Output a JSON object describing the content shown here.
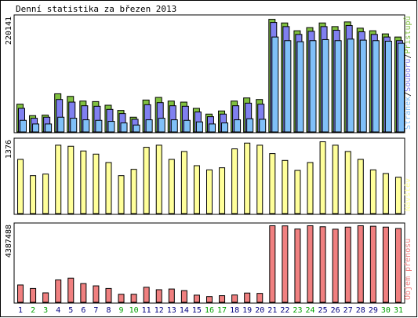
{
  "title": "Denní statistika za březen 2013",
  "colors": {
    "hits": "#80c040",
    "files": "#8080f0",
    "pages": "#80c0f8",
    "visits": "#ffff9a",
    "kbytes": "#f08080",
    "weekday_label": "#000080",
    "weekend_label": "#00a000",
    "border": "#000000"
  },
  "chart_data": [
    {
      "type": "bar",
      "title": "Denní statistika za březen 2013",
      "categories": [
        "1",
        "2",
        "3",
        "4",
        "5",
        "6",
        "7",
        "8",
        "9",
        "10",
        "11",
        "12",
        "13",
        "14",
        "15",
        "16",
        "17",
        "18",
        "19",
        "20",
        "21",
        "22",
        "23",
        "24",
        "25",
        "26",
        "27",
        "28",
        "29",
        "30",
        "31"
      ],
      "weekend_days": [
        "2",
        "3",
        "9",
        "10",
        "16",
        "17",
        "23",
        "24",
        "30",
        "31"
      ],
      "ymax_label": "220141",
      "ylim": [
        0,
        220141
      ],
      "legend": [
        "Stránek",
        "/",
        "Souborů",
        "/",
        "Přístupů"
      ],
      "legend_placement": "right",
      "series": [
        {
          "name": "Přístupů",
          "values": [
            54000,
            32000,
            33000,
            74000,
            69000,
            60000,
            59000,
            52000,
            42000,
            29000,
            62000,
            67000,
            60000,
            58000,
            46000,
            35000,
            41000,
            60000,
            66000,
            63000,
            217000,
            210000,
            195000,
            201000,
            210000,
            203000,
            212000,
            200000,
            195000,
            189000,
            183000
          ]
        },
        {
          "name": "Souborů",
          "values": [
            46000,
            27000,
            29000,
            63000,
            58000,
            51000,
            50000,
            44000,
            36000,
            25000,
            53000,
            57000,
            51000,
            50000,
            39000,
            30000,
            35000,
            51000,
            56000,
            54000,
            211000,
            203000,
            188000,
            194000,
            203000,
            196000,
            205000,
            193000,
            188000,
            183000,
            176000
          ]
        },
        {
          "name": "Stránek",
          "values": [
            23000,
            16000,
            16000,
            29000,
            27000,
            24000,
            23000,
            21000,
            18000,
            14000,
            24000,
            27000,
            24000,
            23000,
            20000,
            16000,
            18000,
            24000,
            26000,
            25000,
            183000,
            176000,
            174000,
            176000,
            178000,
            176000,
            179000,
            177000,
            176000,
            175000,
            171000
          ]
        }
      ]
    },
    {
      "type": "bar",
      "categories": [
        "1",
        "2",
        "3",
        "4",
        "5",
        "6",
        "7",
        "8",
        "9",
        "10",
        "11",
        "12",
        "13",
        "14",
        "15",
        "16",
        "17",
        "18",
        "19",
        "20",
        "21",
        "22",
        "23",
        "24",
        "25",
        "26",
        "27",
        "28",
        "29",
        "30",
        "31"
      ],
      "ymax_label": "1376",
      "ylim": [
        0,
        1376
      ],
      "legend": [
        "Návštěv"
      ],
      "legend_placement": "right",
      "series": [
        {
          "name": "Návštěv",
          "values": [
            1040,
            730,
            760,
            1310,
            1290,
            1200,
            1140,
            980,
            730,
            850,
            1270,
            1310,
            1040,
            1190,
            920,
            840,
            880,
            1240,
            1350,
            1310,
            1150,
            1020,
            830,
            980,
            1375,
            1310,
            1190,
            1040,
            840,
            770,
            700
          ]
        }
      ]
    },
    {
      "type": "bar",
      "categories": [
        "1",
        "2",
        "3",
        "4",
        "5",
        "6",
        "7",
        "8",
        "9",
        "10",
        "11",
        "12",
        "13",
        "14",
        "15",
        "16",
        "17",
        "18",
        "19",
        "20",
        "21",
        "22",
        "23",
        "24",
        "25",
        "26",
        "27",
        "28",
        "29",
        "30",
        "31"
      ],
      "ymax_label": "4387488",
      "ylim": [
        0,
        4387488
      ],
      "legend": [
        "Objem přenosu"
      ],
      "legend_placement": "right",
      "series": [
        {
          "name": "Objem přenosu",
          "values": [
            1010000,
            810000,
            560000,
            1300000,
            1400000,
            1090000,
            960000,
            810000,
            480000,
            480000,
            880000,
            740000,
            780000,
            690000,
            430000,
            350000,
            400000,
            440000,
            550000,
            530000,
            4387000,
            4380000,
            4200000,
            4387000,
            4330000,
            4190000,
            4310000,
            4387000,
            4360000,
            4310000,
            4230000
          ]
        }
      ]
    }
  ]
}
